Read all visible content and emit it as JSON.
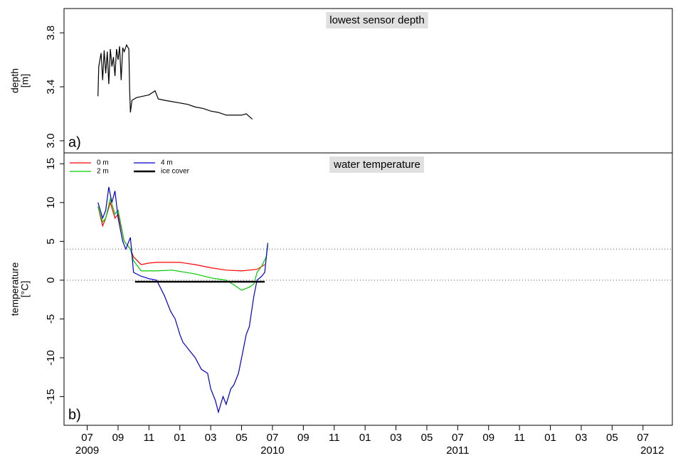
{
  "chart_data": [
    {
      "type": "line",
      "title": "lowest sensor depth",
      "panel_label": "a)",
      "ylabel": [
        "depth",
        "[m]"
      ],
      "xlim": [
        -1.5,
        37.9
      ],
      "ylim": [
        2.91,
        3.98
      ],
      "yticks": [
        {
          "value": 3,
          "label": "3.0"
        },
        3.4,
        3.8
      ],
      "series": [
        {
          "color": "#000000",
          "x": [
            0.7,
            0.75,
            0.9,
            1.0,
            1.1,
            1.2,
            1.3,
            1.4,
            1.5,
            1.6,
            1.7,
            1.8,
            1.9,
            2.0,
            2.1,
            2.2,
            2.3,
            2.4,
            2.55,
            2.7,
            2.75,
            2.8,
            2.9,
            3.2,
            3.6,
            4.0,
            4.4,
            4.6,
            5.0,
            5.5,
            6.0,
            6.5,
            7.0,
            7.5,
            8.0,
            8.5,
            9.0,
            9.5,
            10.0,
            10.3,
            10.5,
            10.7
          ],
          "values": [
            3.33,
            3.55,
            3.65,
            3.45,
            3.67,
            3.5,
            3.66,
            3.42,
            3.68,
            3.55,
            3.62,
            3.48,
            3.68,
            3.6,
            3.7,
            3.45,
            3.69,
            3.66,
            3.71,
            3.68,
            3.38,
            3.21,
            3.3,
            3.32,
            3.33,
            3.34,
            3.37,
            3.31,
            3.3,
            3.29,
            3.28,
            3.27,
            3.25,
            3.24,
            3.22,
            3.21,
            3.19,
            3.19,
            3.19,
            3.2,
            3.18,
            3.16
          ]
        }
      ]
    },
    {
      "type": "line",
      "title": "water temperature",
      "panel_label": "b)",
      "ylabel": [
        "temperature",
        "[°C]"
      ],
      "xlim": [
        -1.5,
        37.9
      ],
      "ylim": [
        -18.7,
        16.4
      ],
      "yticks": [
        -15,
        -10,
        -5,
        0,
        5,
        10,
        15
      ],
      "hlines": [
        0,
        4
      ],
      "xticks": [
        {
          "value": 0,
          "label": "07"
        },
        {
          "value": 2,
          "label": "09"
        },
        {
          "value": 4,
          "label": "11"
        },
        {
          "value": 6,
          "label": "01"
        },
        {
          "value": 8,
          "label": "03"
        },
        {
          "value": 10,
          "label": "05"
        },
        {
          "value": 12,
          "label": "07"
        },
        {
          "value": 14,
          "label": "09"
        },
        {
          "value": 16,
          "label": "11"
        },
        {
          "value": 18,
          "label": "01"
        },
        {
          "value": 20,
          "label": "03"
        },
        {
          "value": 22,
          "label": "05"
        },
        {
          "value": 24,
          "label": "07"
        },
        {
          "value": 26,
          "label": "09"
        },
        {
          "value": 28,
          "label": "11"
        },
        {
          "value": 30,
          "label": "01"
        },
        {
          "value": 32,
          "label": "03"
        },
        {
          "value": 34,
          "label": "05"
        },
        {
          "value": 36,
          "label": "07"
        }
      ],
      "year_labels": [
        {
          "value": 0,
          "label": "2009"
        },
        {
          "value": 12,
          "label": "2010"
        },
        {
          "value": 24,
          "label": "2011"
        },
        {
          "value": 36.6,
          "label": "2012"
        }
      ],
      "series": [
        {
          "name": "0 m",
          "color": "#ff0000",
          "x": [
            0.7,
            1.0,
            1.2,
            1.5,
            1.8,
            2.0,
            2.4,
            2.8,
            3.0,
            3.5,
            4.0,
            4.5,
            5.0,
            6.0,
            7.0,
            8.0,
            9.0,
            10.0,
            11.0,
            11.5
          ],
          "values": [
            9.5,
            7.0,
            8.0,
            10.0,
            8.0,
            8.5,
            5.0,
            4.0,
            3.0,
            2.0,
            2.2,
            2.3,
            2.3,
            2.3,
            2.0,
            1.6,
            1.3,
            1.2,
            1.4,
            2.0
          ]
        },
        {
          "name": "2 m",
          "color": "#00cc00",
          "x": [
            0.7,
            1.0,
            1.2,
            1.5,
            1.8,
            2.0,
            2.4,
            2.8,
            3.0,
            3.5,
            4.5,
            5.5,
            7.0,
            8.0,
            9.0,
            9.5,
            10.0,
            10.5,
            10.8,
            11.0,
            11.3,
            11.6,
            11.7
          ],
          "values": [
            9.5,
            7.5,
            8.0,
            10.5,
            8.5,
            9.0,
            5.0,
            4.0,
            2.5,
            1.2,
            1.2,
            1.3,
            0.8,
            0.3,
            0.0,
            -0.6,
            -1.3,
            -0.9,
            -0.5,
            1.0,
            1.8,
            3.0,
            4.5
          ]
        },
        {
          "name": "4 m",
          "color": "#0000cc",
          "x": [
            0.7,
            1.0,
            1.2,
            1.4,
            1.6,
            1.8,
            2.0,
            2.3,
            2.5,
            2.8,
            3.0,
            3.5,
            4.0,
            4.5,
            5.0,
            5.4,
            5.7,
            6.0,
            6.2,
            6.6,
            7.0,
            7.4,
            7.8,
            8.0,
            8.3,
            8.5,
            8.8,
            9.0,
            9.3,
            9.5,
            9.8,
            10.0,
            10.3,
            10.5,
            10.8,
            11.0,
            11.3,
            11.5,
            11.7
          ],
          "values": [
            10.0,
            8.0,
            9.0,
            12.0,
            10.0,
            11.5,
            8.0,
            5.0,
            4.0,
            5.5,
            1.0,
            0.5,
            0.2,
            0.0,
            -2.0,
            -4.0,
            -5.0,
            -7.0,
            -8.0,
            -9.0,
            -10.0,
            -11.5,
            -12.0,
            -14.0,
            -15.5,
            -17.0,
            -15.0,
            -16.0,
            -14.0,
            -13.5,
            -12.0,
            -10.0,
            -7.0,
            -6.0,
            -2.0,
            0.0,
            0.5,
            1.0,
            4.8
          ]
        },
        {
          "name": "ice cover",
          "color": "#000000",
          "x": [
            3.1,
            11.5
          ],
          "values": [
            -0.2,
            -0.2
          ]
        }
      ]
    }
  ]
}
